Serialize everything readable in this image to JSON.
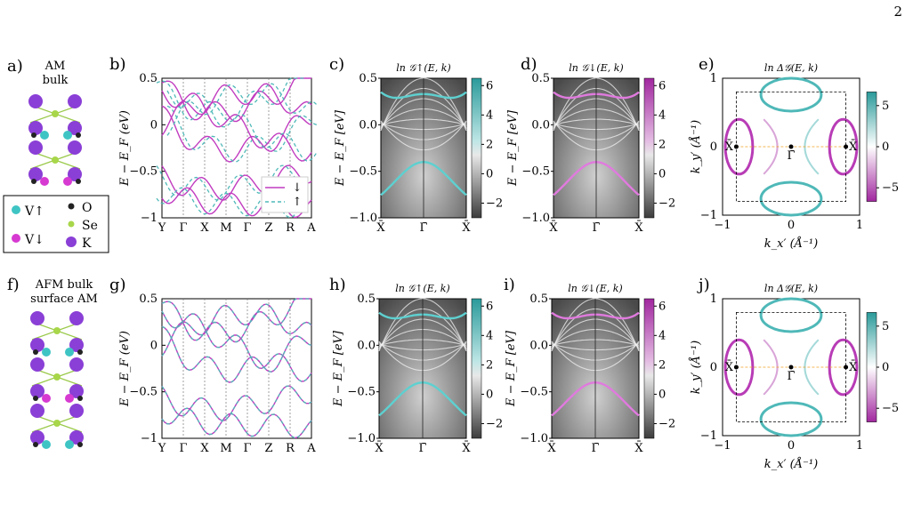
{
  "page_number": "2",
  "panels": {
    "a": {
      "label": "a)",
      "title_lines": [
        "AM",
        "bulk"
      ]
    },
    "b": {
      "label": "b)",
      "ylabel": "E − E_F (eV)",
      "ytick_labels": [
        "0.5",
        "0",
        "−0.5",
        "−1"
      ],
      "kpath": [
        "Y",
        "Γ",
        "X",
        "M",
        "Γ",
        "Z",
        "R",
        "A"
      ],
      "legend": [
        "↓",
        "↑"
      ]
    },
    "c": {
      "label": "c)",
      "title": "ln 𝒢↑(E, k)",
      "ylabel": "E − E_F [eV]",
      "ytick_labels": [
        "0.5",
        "0.0",
        "−0.5",
        "−1.0"
      ],
      "xtick_labels": [
        "X̄",
        "Γ̄",
        "X̄"
      ],
      "cbar_ticks": [
        "6",
        "4",
        "2",
        "0",
        "−2"
      ]
    },
    "d": {
      "label": "d)",
      "title": "ln 𝒢↓(E, k)",
      "ylabel": "E − E_F [eV]",
      "ytick_labels": [
        "0.5",
        "0.0",
        "−0.5",
        "−1.0"
      ],
      "xtick_labels": [
        "X̄",
        "Γ̄",
        "X̄"
      ],
      "cbar_ticks": [
        "6",
        "4",
        "2",
        "0",
        "−2"
      ]
    },
    "e": {
      "label": "e)",
      "title": "ln Δ𝒢(E, k)",
      "ylabel": "k_y′ (Å⁻¹)",
      "xlabel": "k_x′ (Å⁻¹)",
      "ytick_labels": [
        "1",
        "0",
        "−1"
      ],
      "xtick_labels": [
        "−1",
        "0",
        "1"
      ],
      "cbar_ticks": [
        "5",
        "0",
        "−5"
      ],
      "points": [
        "X̄",
        "Γ̄",
        "X̄"
      ]
    },
    "f": {
      "label": "f)",
      "title_lines": [
        "AFM bulk",
        "surface AM"
      ]
    },
    "g": {
      "label": "g)",
      "ylabel": "E − E_F (eV)",
      "ytick_labels": [
        "0.5",
        "0",
        "−0.5",
        "−1"
      ],
      "kpath": [
        "Y",
        "Γ",
        "X",
        "M",
        "Γ",
        "Z",
        "R",
        "A"
      ]
    },
    "h": {
      "label": "h)",
      "title": "ln 𝒢↑(E, k)",
      "ylabel": "E − E_F [eV]",
      "ytick_labels": [
        "0.5",
        "0.0",
        "−0.5",
        "−1.0"
      ],
      "xtick_labels": [
        "X̄",
        "Γ̄",
        "X̄"
      ],
      "cbar_ticks": [
        "6",
        "4",
        "2",
        "0",
        "−2"
      ]
    },
    "i": {
      "label": "i)",
      "title": "ln 𝒢↓(E, k)",
      "ylabel": "E − E_F [eV]",
      "ytick_labels": [
        "0.5",
        "0.0",
        "−0.5",
        "−1.0"
      ],
      "xtick_labels": [
        "X̄",
        "Γ̄",
        "X̄"
      ],
      "cbar_ticks": [
        "6",
        "4",
        "2",
        "0",
        "−2"
      ]
    },
    "j": {
      "label": "j)",
      "title": "ln Δ𝒢(E, k)",
      "ylabel": "k_y′ (Å⁻¹)",
      "xlabel": "k_x′ (Å⁻¹)",
      "ytick_labels": [
        "1",
        "0",
        "−1"
      ],
      "xtick_labels": [
        "−1",
        "0",
        "1"
      ],
      "cbar_ticks": [
        "5",
        "0",
        "−5"
      ],
      "points": [
        "X̄",
        "Γ̄",
        "X̄"
      ]
    }
  },
  "legend": [
    {
      "symbol": "V↑",
      "color": "#3fc4c4"
    },
    {
      "symbol": "O",
      "color": "#222222"
    },
    {
      "symbol": "V↓",
      "color": "#d63ad1"
    },
    {
      "symbol": "Se",
      "color": "#a8d64a"
    },
    {
      "symbol": "K",
      "color": "#8a3fd6"
    }
  ],
  "colors": {
    "up": "#3aaeae",
    "down": "#c13cc0",
    "teal": "#4fb8b8",
    "magenta": "#b83cb6"
  }
}
